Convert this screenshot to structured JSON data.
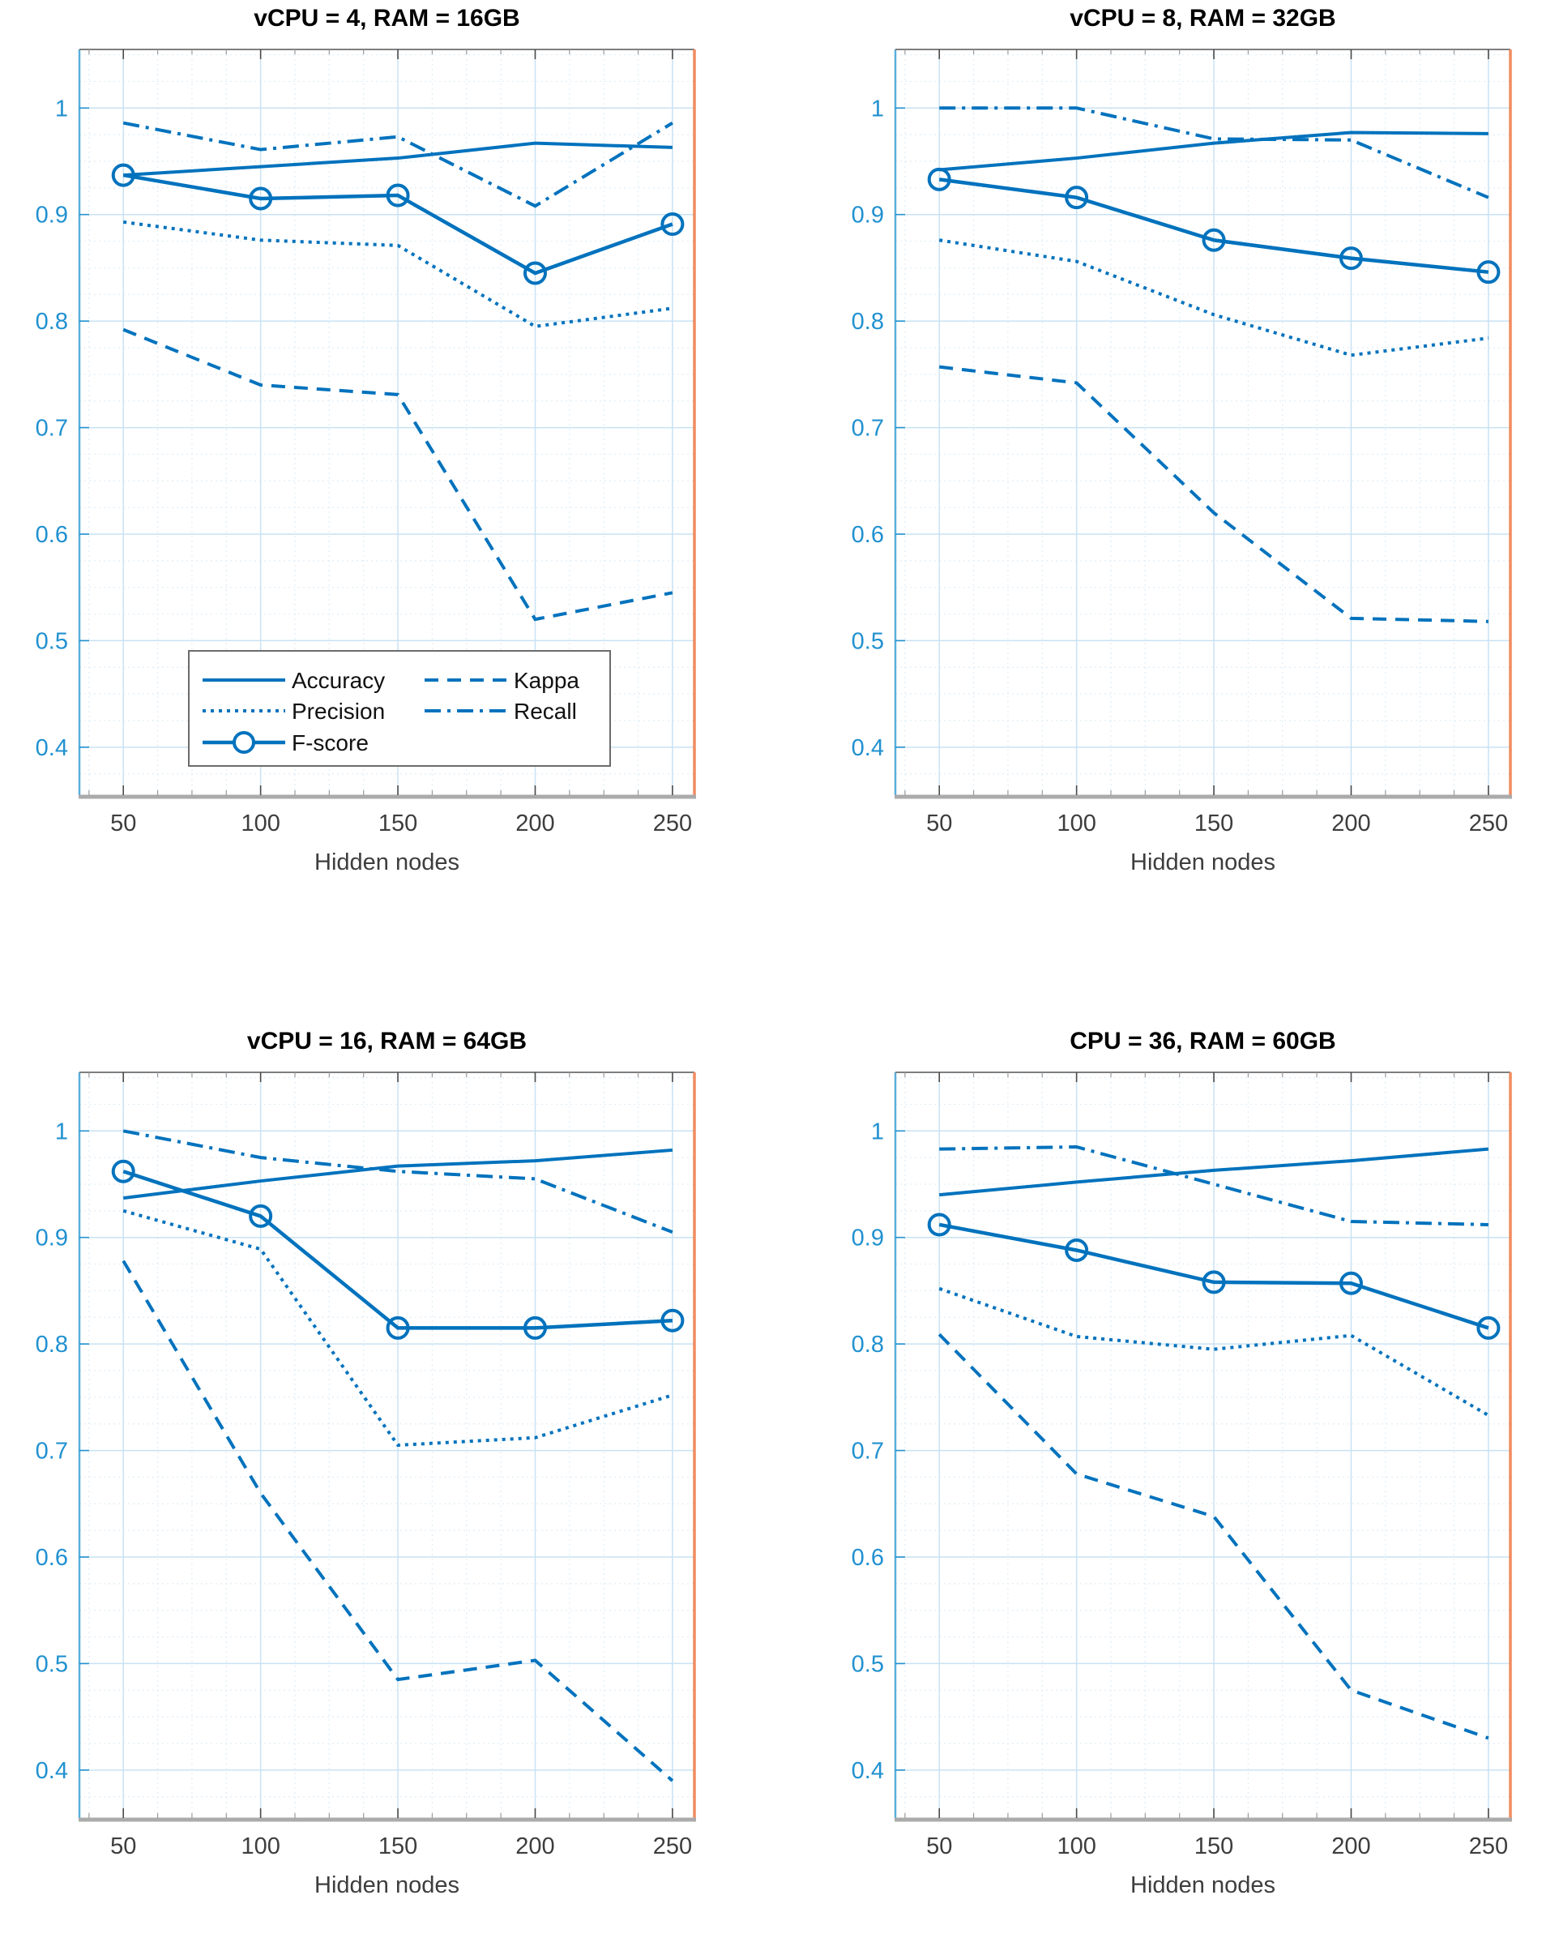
{
  "figure": {
    "background": "#ffffff",
    "line_color": "#0072BD",
    "axis_colors": {
      "left_spine": "#59AFDC",
      "bottom_spine": "#ABABAB",
      "top_spine": "#7E7E7E",
      "right_spine": "#F08B5F",
      "major_grid": "#C9E2F3",
      "minor_grid": "#DFEEF8",
      "y_tick_label": "#2191D0",
      "x_tick_label": "#3D3D3D"
    }
  },
  "legend": {
    "background": "#ffffff",
    "border_color": "#6B6B6B",
    "location": "inside-first-chart-bottom-left",
    "columns": [
      [
        "Accuracy",
        "Precision",
        "F-score"
      ],
      [
        "Kappa",
        "Recall"
      ]
    ]
  },
  "chart_data": [
    {
      "type": "line",
      "title": "vCPU = 4, RAM = 16GB",
      "xlabel": "Hidden nodes",
      "ylabel": "",
      "x": [
        50,
        100,
        150,
        200,
        250
      ],
      "xticks": [
        50,
        100,
        150,
        200,
        250
      ],
      "yticks": [
        0.4,
        0.5,
        0.6,
        0.7,
        0.8,
        0.9,
        1
      ],
      "xlim": [
        34,
        258
      ],
      "ylim": [
        0.355,
        1.055
      ],
      "grid": "major+minor",
      "legend": true,
      "series": [
        {
          "name": "Accuracy",
          "style": "solid",
          "values": [
            0.937,
            0.945,
            0.953,
            0.967,
            0.963
          ]
        },
        {
          "name": "Precision",
          "style": "dotted",
          "values": [
            0.893,
            0.876,
            0.871,
            0.795,
            0.812
          ]
        },
        {
          "name": "F-score",
          "style": "solid-circle",
          "values": [
            0.937,
            0.915,
            0.918,
            0.845,
            0.891
          ]
        },
        {
          "name": "Kappa",
          "style": "dashed",
          "values": [
            0.792,
            0.74,
            0.731,
            0.52,
            0.545
          ]
        },
        {
          "name": "Recall",
          "style": "dashdot",
          "values": [
            0.986,
            0.961,
            0.973,
            0.908,
            0.986
          ]
        }
      ]
    },
    {
      "type": "line",
      "title": "vCPU = 8, RAM = 32GB",
      "xlabel": "Hidden nodes",
      "ylabel": "",
      "x": [
        50,
        100,
        150,
        200,
        250
      ],
      "xticks": [
        50,
        100,
        150,
        200,
        250
      ],
      "yticks": [
        0.4,
        0.5,
        0.6,
        0.7,
        0.8,
        0.9,
        1
      ],
      "xlim": [
        34,
        258
      ],
      "ylim": [
        0.355,
        1.055
      ],
      "grid": "major+minor",
      "legend": false,
      "series": [
        {
          "name": "Accuracy",
          "style": "solid",
          "values": [
            0.942,
            0.953,
            0.967,
            0.977,
            0.976
          ]
        },
        {
          "name": "Precision",
          "style": "dotted",
          "values": [
            0.876,
            0.856,
            0.806,
            0.768,
            0.784
          ]
        },
        {
          "name": "F-score",
          "style": "solid-circle",
          "values": [
            0.933,
            0.916,
            0.876,
            0.859,
            0.846
          ]
        },
        {
          "name": "Kappa",
          "style": "dashed",
          "values": [
            0.757,
            0.742,
            0.62,
            0.521,
            0.518
          ]
        },
        {
          "name": "Recall",
          "style": "dashdot",
          "values": [
            1.0,
            1.0,
            0.971,
            0.97,
            0.916
          ]
        }
      ]
    },
    {
      "type": "line",
      "title": "vCPU = 16, RAM = 64GB",
      "xlabel": "Hidden nodes",
      "ylabel": "",
      "x": [
        50,
        100,
        150,
        200,
        250
      ],
      "xticks": [
        50,
        100,
        150,
        200,
        250
      ],
      "yticks": [
        0.4,
        0.5,
        0.6,
        0.7,
        0.8,
        0.9,
        1
      ],
      "xlim": [
        34,
        258
      ],
      "ylim": [
        0.355,
        1.055
      ],
      "grid": "major+minor",
      "legend": false,
      "series": [
        {
          "name": "Accuracy",
          "style": "solid",
          "values": [
            0.937,
            0.953,
            0.967,
            0.972,
            0.982
          ]
        },
        {
          "name": "Precision",
          "style": "dotted",
          "values": [
            0.925,
            0.889,
            0.705,
            0.712,
            0.752
          ]
        },
        {
          "name": "F-score",
          "style": "solid-circle",
          "values": [
            0.962,
            0.92,
            0.815,
            0.815,
            0.822
          ]
        },
        {
          "name": "Kappa",
          "style": "dashed",
          "values": [
            0.878,
            0.66,
            0.485,
            0.503,
            0.39
          ]
        },
        {
          "name": "Recall",
          "style": "dashdot",
          "values": [
            1.0,
            0.975,
            0.962,
            0.955,
            0.905
          ]
        }
      ]
    },
    {
      "type": "line",
      "title": "CPU = 36, RAM = 60GB",
      "xlabel": "Hidden nodes",
      "ylabel": "",
      "x": [
        50,
        100,
        150,
        200,
        250
      ],
      "xticks": [
        50,
        100,
        150,
        200,
        250
      ],
      "yticks": [
        0.4,
        0.5,
        0.6,
        0.7,
        0.8,
        0.9,
        1
      ],
      "xlim": [
        34,
        258
      ],
      "ylim": [
        0.355,
        1.055
      ],
      "grid": "major+minor",
      "legend": false,
      "series": [
        {
          "name": "Accuracy",
          "style": "solid",
          "values": [
            0.94,
            0.952,
            0.963,
            0.972,
            0.983
          ]
        },
        {
          "name": "Precision",
          "style": "dotted",
          "values": [
            0.852,
            0.807,
            0.795,
            0.808,
            0.733
          ]
        },
        {
          "name": "F-score",
          "style": "solid-circle",
          "values": [
            0.912,
            0.888,
            0.858,
            0.857,
            0.815
          ]
        },
        {
          "name": "Kappa",
          "style": "dashed",
          "values": [
            0.809,
            0.678,
            0.638,
            0.475,
            0.43
          ]
        },
        {
          "name": "Recall",
          "style": "dashdot",
          "values": [
            0.983,
            0.985,
            0.95,
            0.915,
            0.912
          ]
        }
      ]
    }
  ]
}
